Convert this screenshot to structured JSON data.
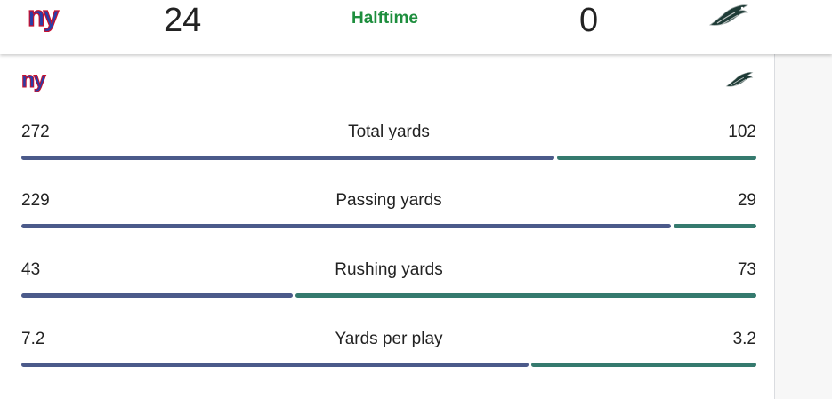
{
  "scoreboard": {
    "home_team_logo": "ny-giants-logo",
    "away_team_logo": "eagles-logo",
    "home_score": "24",
    "away_score": "0",
    "status": "Halftime"
  },
  "colors": {
    "home_bar": "#4b5a8a",
    "away_bar": "#357a6e",
    "status_green": "#1e8e3e",
    "giants_blue": "#2a3ea8"
  },
  "stats": [
    {
      "label": "Total yards",
      "home": "272",
      "away": "102",
      "home_value": 272,
      "away_value": 102
    },
    {
      "label": "Passing yards",
      "home": "229",
      "away": "29",
      "home_value": 229,
      "away_value": 29
    },
    {
      "label": "Rushing yards",
      "home": "43",
      "away": "73",
      "home_value": 43,
      "away_value": 73
    },
    {
      "label": "Yards per play",
      "home": "7.2",
      "away": "3.2",
      "home_value": 7.2,
      "away_value": 3.2
    }
  ]
}
